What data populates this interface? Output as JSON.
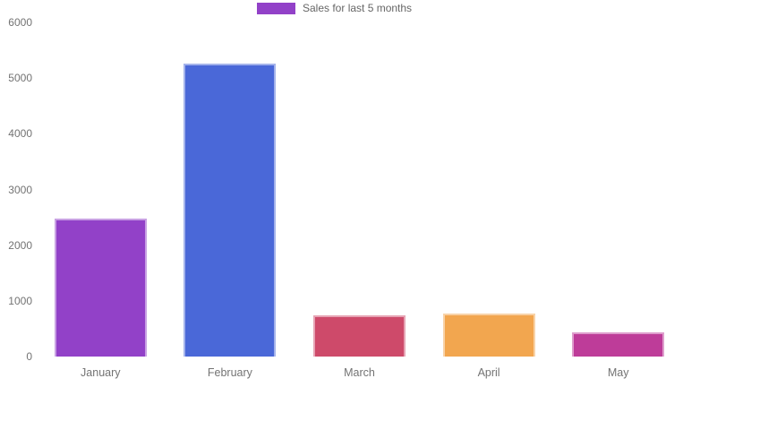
{
  "legend": {
    "label": "Sales for last 5 months",
    "swatch_color": "#9241C8"
  },
  "chart_data": {
    "type": "bar",
    "title": "",
    "xlabel": "",
    "ylabel": "",
    "categories": [
      "January",
      "February",
      "March",
      "April",
      "May"
    ],
    "series": [
      {
        "name": "Sales for last 5 months",
        "values": [
          2480,
          5260,
          740,
          770,
          430
        ]
      }
    ],
    "colors": [
      "#9241C8",
      "#4A68D8",
      "#CE4A6A",
      "#F2A64F",
      "#BE3C99"
    ],
    "border_colors": [
      "#C8A0E3",
      "#A4B3EB",
      "#E6A4B4",
      "#F8D2A7",
      "#DE9DCC"
    ],
    "ylim": [
      0,
      6000
    ],
    "yticks": [
      0,
      1000,
      2000,
      3000,
      4000,
      5000,
      6000
    ],
    "grid": false,
    "legend_position": "top",
    "background": "#ffffff"
  }
}
